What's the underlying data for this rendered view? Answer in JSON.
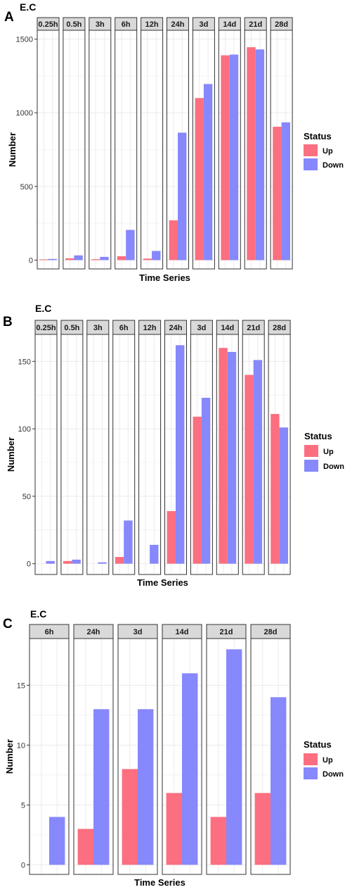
{
  "colors": {
    "up": "#fb6f80",
    "down": "#8688fb",
    "strip_fill": "#d9d9d9",
    "grid": "#ebebeb"
  },
  "chart_data": [
    {
      "type": "bar",
      "panel_label": "A",
      "title": "E.C",
      "xlabel": "Time Series",
      "ylabel": "Number",
      "ylim": [
        -60,
        1560
      ],
      "yticks": [
        0,
        500,
        1000,
        1500
      ],
      "categories": [
        "0.25h",
        "0.5h",
        "3h",
        "6h",
        "12h",
        "24h",
        "3d",
        "14d",
        "21d",
        "28d"
      ],
      "series": [
        {
          "name": "Up",
          "values": [
            4,
            12,
            6,
            26,
            10,
            270,
            1100,
            1390,
            1445,
            905
          ]
        },
        {
          "name": "Down",
          "values": [
            8,
            32,
            22,
            205,
            62,
            865,
            1195,
            1395,
            1430,
            935
          ]
        }
      ],
      "legend": {
        "title": "Status",
        "position": "right"
      },
      "grid": true
    },
    {
      "type": "bar",
      "panel_label": "B",
      "title": "E.C",
      "xlabel": "Time Series",
      "ylabel": "Number",
      "ylim": [
        -8,
        170
      ],
      "yticks": [
        0,
        50,
        100,
        150
      ],
      "categories": [
        "0.25h",
        "0.5h",
        "3h",
        "6h",
        "12h",
        "24h",
        "3d",
        "14d",
        "21d",
        "28d"
      ],
      "series": [
        {
          "name": "Up",
          "values": [
            0,
            2,
            0,
            5,
            0,
            39,
            109,
            160,
            140,
            111
          ]
        },
        {
          "name": "Down",
          "values": [
            2,
            3,
            1,
            32,
            14,
            162,
            123,
            157,
            151,
            101
          ]
        }
      ],
      "legend": {
        "title": "Status",
        "position": "right"
      },
      "grid": true
    },
    {
      "type": "bar",
      "panel_label": "C",
      "title": "E.C",
      "xlabel": "Time Series",
      "ylabel": "Number",
      "ylim": [
        -0.8,
        18.9
      ],
      "yticks": [
        0,
        5,
        10,
        15
      ],
      "categories": [
        "6h",
        "24h",
        "3d",
        "14d",
        "21d",
        "28d"
      ],
      "series": [
        {
          "name": "Up",
          "values": [
            0,
            3,
            8,
            6,
            4,
            6
          ]
        },
        {
          "name": "Down",
          "values": [
            4,
            13,
            13,
            16,
            18,
            14
          ]
        }
      ],
      "legend": {
        "title": "Status",
        "position": "right"
      },
      "grid": true
    }
  ]
}
